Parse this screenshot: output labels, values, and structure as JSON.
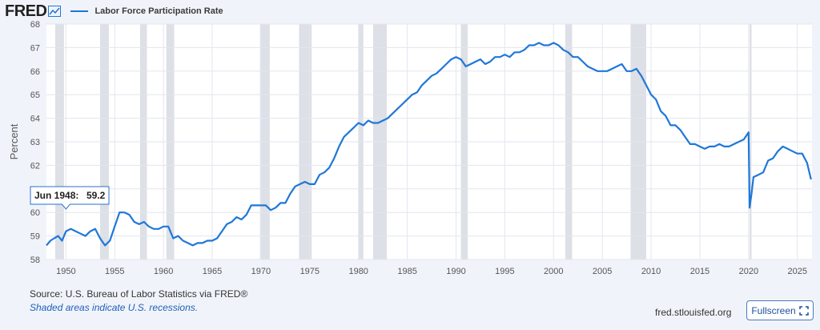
{
  "header": {
    "logo": "FRED",
    "legend_label": "Labor Force Participation Rate"
  },
  "footer": {
    "source": "U.S. Bureau of Labor Statistics via FRED®",
    "note": "Shaded areas indicate U.S. recessions.",
    "site": "fred.stlouisfed.org",
    "fullscreen_label": "Fullscreen"
  },
  "tooltip": {
    "date": "Jun 1948:",
    "value": "59.2"
  },
  "colors": {
    "line": "#1f77d8",
    "recession": "#dde0e6",
    "grid": "#e2e6ee",
    "plot_bg": "#ffffff"
  },
  "chart_data": {
    "type": "line",
    "title": "",
    "xlabel": "",
    "ylabel": "Percent",
    "xlim": [
      1948.0,
      2026.5
    ],
    "ylim": [
      58,
      68
    ],
    "yticks": [
      58,
      59,
      60,
      61,
      62,
      63,
      64,
      65,
      66,
      67,
      68
    ],
    "xticks": [
      1950,
      1955,
      1960,
      1965,
      1970,
      1975,
      1980,
      1985,
      1990,
      1995,
      2000,
      2005,
      2010,
      2015,
      2020,
      2025
    ],
    "grid": true,
    "legend_position": "top-left",
    "recessions": [
      [
        1948.9,
        1949.8
      ],
      [
        1953.5,
        1954.4
      ],
      [
        1957.6,
        1958.3
      ],
      [
        1960.3,
        1961.1
      ],
      [
        1969.9,
        1970.9
      ],
      [
        1973.9,
        1975.2
      ],
      [
        1980.0,
        1980.5
      ],
      [
        1981.5,
        1982.9
      ],
      [
        1990.5,
        1991.2
      ],
      [
        2001.2,
        2001.9
      ],
      [
        2007.9,
        2009.5
      ],
      [
        2020.1,
        2020.3
      ]
    ],
    "series": [
      {
        "name": "Labor Force Participation Rate",
        "x": [
          1948.0,
          1948.4,
          1948.8,
          1949.2,
          1949.6,
          1950.0,
          1950.5,
          1951.0,
          1951.5,
          1952.0,
          1952.5,
          1953.0,
          1953.5,
          1954.0,
          1954.5,
          1955.0,
          1955.5,
          1956.0,
          1956.5,
          1957.0,
          1957.5,
          1958.0,
          1958.5,
          1959.0,
          1959.5,
          1960.0,
          1960.5,
          1961.0,
          1961.5,
          1962.0,
          1962.5,
          1963.0,
          1963.5,
          1964.0,
          1964.5,
          1965.0,
          1965.5,
          1966.0,
          1966.5,
          1967.0,
          1967.5,
          1968.0,
          1968.5,
          1969.0,
          1969.5,
          1970.0,
          1970.5,
          1971.0,
          1971.5,
          1972.0,
          1972.5,
          1973.0,
          1973.5,
          1974.0,
          1974.5,
          1975.0,
          1975.5,
          1976.0,
          1976.5,
          1977.0,
          1977.5,
          1978.0,
          1978.5,
          1979.0,
          1979.5,
          1980.0,
          1980.5,
          1981.0,
          1981.5,
          1982.0,
          1982.5,
          1983.0,
          1983.5,
          1984.0,
          1984.5,
          1985.0,
          1985.5,
          1986.0,
          1986.5,
          1987.0,
          1987.5,
          1988.0,
          1988.5,
          1989.0,
          1989.5,
          1990.0,
          1990.5,
          1991.0,
          1991.5,
          1992.0,
          1992.5,
          1993.0,
          1993.5,
          1994.0,
          1994.5,
          1995.0,
          1995.5,
          1996.0,
          1996.5,
          1997.0,
          1997.5,
          1998.0,
          1998.5,
          1999.0,
          1999.5,
          2000.0,
          2000.5,
          2001.0,
          2001.5,
          2002.0,
          2002.5,
          2003.0,
          2003.5,
          2004.0,
          2004.5,
          2005.0,
          2005.5,
          2006.0,
          2006.5,
          2007.0,
          2007.5,
          2008.0,
          2008.5,
          2009.0,
          2009.5,
          2010.0,
          2010.5,
          2011.0,
          2011.5,
          2012.0,
          2012.5,
          2013.0,
          2013.5,
          2014.0,
          2014.5,
          2015.0,
          2015.5,
          2016.0,
          2016.5,
          2017.0,
          2017.5,
          2018.0,
          2018.5,
          2019.0,
          2019.5,
          2020.0,
          2020.1,
          2020.3,
          2020.5,
          2021.0,
          2021.5,
          2022.0,
          2022.5,
          2023.0,
          2023.5,
          2024.0,
          2024.5,
          2025.0,
          2025.5,
          2026.0,
          2026.4
        ],
        "values": [
          58.6,
          58.8,
          58.9,
          59.0,
          58.8,
          59.2,
          59.3,
          59.2,
          59.1,
          59.0,
          59.2,
          59.3,
          58.9,
          58.6,
          58.8,
          59.4,
          60.0,
          60.0,
          59.9,
          59.6,
          59.5,
          59.6,
          59.4,
          59.3,
          59.3,
          59.4,
          59.4,
          58.9,
          59.0,
          58.8,
          58.7,
          58.6,
          58.7,
          58.7,
          58.8,
          58.8,
          58.9,
          59.2,
          59.5,
          59.6,
          59.8,
          59.7,
          59.9,
          60.3,
          60.3,
          60.3,
          60.3,
          60.1,
          60.2,
          60.4,
          60.4,
          60.8,
          61.1,
          61.2,
          61.3,
          61.2,
          61.2,
          61.6,
          61.7,
          61.9,
          62.3,
          62.8,
          63.2,
          63.4,
          63.6,
          63.8,
          63.7,
          63.9,
          63.8,
          63.8,
          63.9,
          64.0,
          64.2,
          64.4,
          64.6,
          64.8,
          65.0,
          65.1,
          65.4,
          65.6,
          65.8,
          65.9,
          66.1,
          66.3,
          66.5,
          66.6,
          66.5,
          66.2,
          66.3,
          66.4,
          66.5,
          66.3,
          66.4,
          66.6,
          66.6,
          66.7,
          66.6,
          66.8,
          66.8,
          66.9,
          67.1,
          67.1,
          67.2,
          67.1,
          67.1,
          67.2,
          67.1,
          66.9,
          66.8,
          66.6,
          66.6,
          66.4,
          66.2,
          66.1,
          66.0,
          66.0,
          66.0,
          66.1,
          66.2,
          66.3,
          66.0,
          66.0,
          66.1,
          65.8,
          65.4,
          65.0,
          64.8,
          64.3,
          64.1,
          63.7,
          63.7,
          63.5,
          63.2,
          62.9,
          62.9,
          62.8,
          62.7,
          62.8,
          62.8,
          62.9,
          62.8,
          62.8,
          62.9,
          63.0,
          63.1,
          63.4,
          60.2,
          60.8,
          61.5,
          61.6,
          61.7,
          62.2,
          62.3,
          62.6,
          62.8,
          62.7,
          62.6,
          62.5,
          62.5,
          62.1,
          61.4
        ]
      }
    ]
  }
}
